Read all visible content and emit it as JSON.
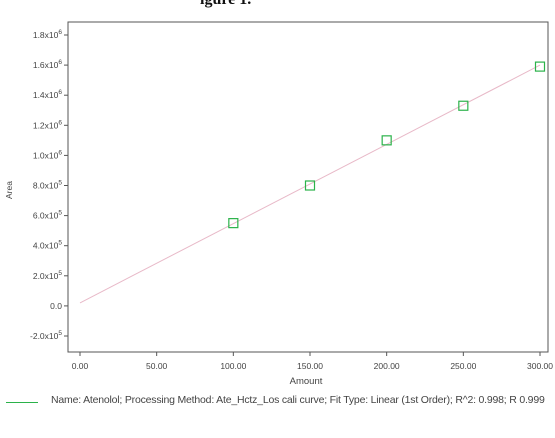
{
  "chart_data": {
    "type": "scatter",
    "title": "",
    "title_fragment": "igure 1.",
    "xlabel": "Amount",
    "ylabel": "Area",
    "xlim": [
      0,
      300
    ],
    "ylim": [
      -200000,
      1900000
    ],
    "x_ticks": [
      "0.00",
      "50.00",
      "100.00",
      "150.00",
      "200.00",
      "250.00",
      "300.00"
    ],
    "y_ticks": [
      {
        "value": 1800000,
        "base": "1.8x10",
        "exp": "6"
      },
      {
        "value": 1600000,
        "base": "1.6x10",
        "exp": "6"
      },
      {
        "value": 1400000,
        "base": "1.4x10",
        "exp": "6"
      },
      {
        "value": 1200000,
        "base": "1.2x10",
        "exp": "6"
      },
      {
        "value": 1000000,
        "base": "1.0x10",
        "exp": "6"
      },
      {
        "value": 800000,
        "base": "8.0x10",
        "exp": "5"
      },
      {
        "value": 600000,
        "base": "6.0x10",
        "exp": "5"
      },
      {
        "value": 400000,
        "base": "4.0x10",
        "exp": "5"
      },
      {
        "value": 200000,
        "base": "2.0x10",
        "exp": "5"
      },
      {
        "value": 0,
        "base": "0.0",
        "exp": ""
      },
      {
        "value": -200000,
        "base": "-2.0x10",
        "exp": "5"
      }
    ],
    "series": [
      {
        "name": "Atenolol",
        "points": [
          {
            "x": 100,
            "y": 550000
          },
          {
            "x": 150,
            "y": 800000
          },
          {
            "x": 200,
            "y": 1100000
          },
          {
            "x": 250,
            "y": 1330000
          },
          {
            "x": 300,
            "y": 1590000
          }
        ],
        "fit": {
          "x": [
            0,
            300
          ],
          "y": [
            20000,
            1600000
          ]
        }
      }
    ],
    "grid": false,
    "legend_position": "bottom"
  },
  "colors": {
    "marker": "#2bb24a",
    "fit_line": "#e8b9c8",
    "axis": "#555555",
    "legend_line": "#2bb24a"
  },
  "legend": {
    "text": "Name: Atenolol;  Processing Method: Ate_Hctz_Los cali curve;  Fit Type: Linear (1st Order);  R^2: 0.998; R 0.999"
  }
}
